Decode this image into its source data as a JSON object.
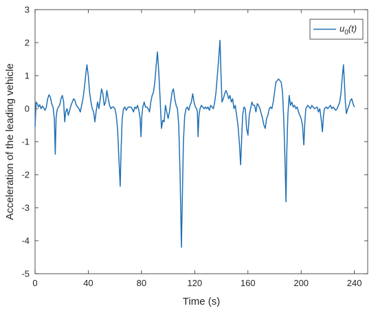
{
  "chart_data": {
    "type": "line",
    "xlabel": "Time (s)",
    "ylabel": "Acceleration of the leading vehicle",
    "xlim": [
      0,
      250
    ],
    "ylim": [
      -5,
      3
    ],
    "x_ticks": [
      0,
      40,
      80,
      120,
      160,
      200,
      240
    ],
    "y_ticks": [
      -5,
      -4,
      -3,
      -2,
      -1,
      0,
      1,
      2,
      3
    ],
    "grid": false,
    "legend_position": "top-right",
    "series": [
      {
        "name_parts": {
          "base": "u",
          "sub": "0",
          "tail": "(t)"
        },
        "color": "#1f6fb4",
        "points": [
          [
            0,
            -0.55
          ],
          [
            0.8,
            0.2
          ],
          [
            1.6,
            0.15
          ],
          [
            2.5,
            0.05
          ],
          [
            3.5,
            0.12
          ],
          [
            4.5,
            0.0
          ],
          [
            5.5,
            0.08
          ],
          [
            6.5,
            0.02
          ],
          [
            7.5,
            -0.05
          ],
          [
            8.5,
            0.05
          ],
          [
            9.5,
            0.3
          ],
          [
            10.5,
            0.42
          ],
          [
            11.5,
            0.35
          ],
          [
            12.5,
            0.15
          ],
          [
            13.5,
            0.05
          ],
          [
            14.5,
            -0.3
          ],
          [
            15.2,
            -1.38
          ],
          [
            15.8,
            -0.3
          ],
          [
            16.5,
            -0.05
          ],
          [
            17.5,
            0.05
          ],
          [
            18.5,
            0.1
          ],
          [
            19.5,
            0.3
          ],
          [
            20.5,
            0.4
          ],
          [
            21.5,
            0.2
          ],
          [
            22.3,
            -0.4
          ],
          [
            23,
            -0.1
          ],
          [
            24,
            0.0
          ],
          [
            25,
            -0.2
          ],
          [
            26,
            -0.05
          ],
          [
            27,
            0.1
          ],
          [
            28,
            0.2
          ],
          [
            29,
            0.3
          ],
          [
            30,
            0.25
          ],
          [
            31,
            0.1
          ],
          [
            32,
            0.05
          ],
          [
            33,
            0.0
          ],
          [
            34,
            -0.1
          ],
          [
            35,
            0.1
          ],
          [
            36,
            0.3
          ],
          [
            37,
            0.6
          ],
          [
            38,
            1.0
          ],
          [
            39,
            1.33
          ],
          [
            40,
            1.0
          ],
          [
            41,
            0.5
          ],
          [
            42,
            0.2
          ],
          [
            43,
            0.0
          ],
          [
            44,
            -0.1
          ],
          [
            45,
            -0.4
          ],
          [
            46,
            -0.05
          ],
          [
            47,
            0.2
          ],
          [
            48,
            0.0
          ],
          [
            49,
            0.3
          ],
          [
            50,
            0.6
          ],
          [
            51,
            0.45
          ],
          [
            52,
            0.1
          ],
          [
            53,
            0.2
          ],
          [
            54,
            0.55
          ],
          [
            55,
            0.3
          ],
          [
            56,
            0.1
          ],
          [
            57,
            0.0
          ],
          [
            58,
            0.05
          ],
          [
            59,
            0.05
          ],
          [
            60,
            0.0
          ],
          [
            61,
            -0.2
          ],
          [
            62,
            -0.6
          ],
          [
            63,
            -1.5
          ],
          [
            64,
            -2.35
          ],
          [
            64.7,
            -1.2
          ],
          [
            65.5,
            -0.3
          ],
          [
            66.5,
            0.0
          ],
          [
            67.5,
            0.05
          ],
          [
            68.5,
            -0.05
          ],
          [
            70,
            0.05
          ],
          [
            72,
            0.05
          ],
          [
            73,
            0.0
          ],
          [
            74,
            -0.1
          ],
          [
            75,
            0.05
          ],
          [
            76,
            0.0
          ],
          [
            77,
            0.1
          ],
          [
            78,
            -0.05
          ],
          [
            79,
            -0.3
          ],
          [
            79.6,
            -0.85
          ],
          [
            80.3,
            -0.2
          ],
          [
            81,
            0.05
          ],
          [
            82,
            0.2
          ],
          [
            83,
            0.05
          ],
          [
            84,
            0.05
          ],
          [
            85,
            0.0
          ],
          [
            86,
            -0.1
          ],
          [
            87,
            0.2
          ],
          [
            88,
            0.4
          ],
          [
            89,
            0.5
          ],
          [
            90,
            0.8
          ],
          [
            91,
            1.3
          ],
          [
            92,
            1.72
          ],
          [
            93,
            1.1
          ],
          [
            94,
            0.3
          ],
          [
            95,
            -0.6
          ],
          [
            96,
            -0.35
          ],
          [
            97,
            -0.4
          ],
          [
            98,
            0.1
          ],
          [
            99,
            -0.1
          ],
          [
            100,
            -0.3
          ],
          [
            101,
            -0.1
          ],
          [
            102,
            0.2
          ],
          [
            103,
            0.5
          ],
          [
            104,
            0.6
          ],
          [
            105,
            0.3
          ],
          [
            106,
            0.1
          ],
          [
            107,
            0.0
          ],
          [
            108,
            -0.5
          ],
          [
            109,
            -2.0
          ],
          [
            110,
            -4.2
          ],
          [
            110.8,
            -2.5
          ],
          [
            111.5,
            -1.0
          ],
          [
            112.5,
            -0.2
          ],
          [
            113.5,
            0.0
          ],
          [
            114.5,
            0.05
          ],
          [
            115.5,
            -0.05
          ],
          [
            116.5,
            0.1
          ],
          [
            117.5,
            0.2
          ],
          [
            118.5,
            0.45
          ],
          [
            119.5,
            0.2
          ],
          [
            120.5,
            0.05
          ],
          [
            121.5,
            0.0
          ],
          [
            122,
            -0.1
          ],
          [
            122.5,
            -0.85
          ],
          [
            123.2,
            -0.2
          ],
          [
            124,
            0.0
          ],
          [
            125,
            0.1
          ],
          [
            126,
            0.05
          ],
          [
            127,
            0.0
          ],
          [
            128,
            0.05
          ],
          [
            129,
            0.0
          ],
          [
            130,
            0.05
          ],
          [
            131,
            -0.05
          ],
          [
            132,
            0.1
          ],
          [
            133,
            0.05
          ],
          [
            134,
            0.0
          ],
          [
            135,
            0.2
          ],
          [
            136,
            0.5
          ],
          [
            137,
            1.0
          ],
          [
            138,
            1.5
          ],
          [
            139,
            2.07
          ],
          [
            139.8,
            1.0
          ],
          [
            140.5,
            0.2
          ],
          [
            141.5,
            0.3
          ],
          [
            142.5,
            0.45
          ],
          [
            143.5,
            0.55
          ],
          [
            144.5,
            0.45
          ],
          [
            145.5,
            0.3
          ],
          [
            146.5,
            0.4
          ],
          [
            147.5,
            0.2
          ],
          [
            148.5,
            0.3
          ],
          [
            149.5,
            0.0
          ],
          [
            150.5,
            0.1
          ],
          [
            151.5,
            -0.2
          ],
          [
            152.5,
            -0.5
          ],
          [
            153.5,
            -1.0
          ],
          [
            154.5,
            -1.7
          ],
          [
            155.2,
            -1.0
          ],
          [
            156,
            -0.2
          ],
          [
            157,
            0.05
          ],
          [
            158,
            0.0
          ],
          [
            159,
            -0.6
          ],
          [
            160,
            -0.8
          ],
          [
            161,
            -0.2
          ],
          [
            162,
            0.0
          ],
          [
            163,
            0.2
          ],
          [
            164,
            0.1
          ],
          [
            165,
            0.1
          ],
          [
            166,
            -0.1
          ],
          [
            167,
            0.15
          ],
          [
            168,
            0.1
          ],
          [
            169,
            0.0
          ],
          [
            170,
            -0.15
          ],
          [
            171,
            -0.3
          ],
          [
            172,
            -0.5
          ],
          [
            173,
            -0.6
          ],
          [
            174,
            -0.3
          ],
          [
            175,
            -0.2
          ],
          [
            176,
            0.0
          ],
          [
            177,
            0.05
          ],
          [
            178,
            0.0
          ],
          [
            179,
            0.2
          ],
          [
            180,
            0.5
          ],
          [
            181,
            0.8
          ],
          [
            182,
            0.85
          ],
          [
            183,
            0.9
          ],
          [
            184,
            0.85
          ],
          [
            185,
            0.8
          ],
          [
            186,
            0.5
          ],
          [
            187,
            -0.4
          ],
          [
            188,
            -1.8
          ],
          [
            188.6,
            -2.82
          ],
          [
            189.2,
            -1.3
          ],
          [
            190,
            -0.2
          ],
          [
            191,
            0.4
          ],
          [
            192,
            0.1
          ],
          [
            193,
            0.2
          ],
          [
            194,
            0.05
          ],
          [
            195,
            0.1
          ],
          [
            196,
            0.0
          ],
          [
            197,
            0.05
          ],
          [
            198,
            -0.1
          ],
          [
            199,
            -0.2
          ],
          [
            200,
            -0.3
          ],
          [
            201,
            -0.5
          ],
          [
            202,
            -1.1
          ],
          [
            202.8,
            -0.4
          ],
          [
            203.5,
            0.0
          ],
          [
            205,
            0.1
          ],
          [
            206,
            0.05
          ],
          [
            207,
            0.0
          ],
          [
            208,
            0.1
          ],
          [
            209,
            0.05
          ],
          [
            210,
            0.0
          ],
          [
            212,
            0.05
          ],
          [
            213,
            -0.1
          ],
          [
            214,
            0.0
          ],
          [
            215,
            -0.3
          ],
          [
            216,
            -0.7
          ],
          [
            216.8,
            -0.2
          ],
          [
            217.5,
            0.0
          ],
          [
            219,
            0.05
          ],
          [
            220,
            0.0
          ],
          [
            221,
            0.05
          ],
          [
            222,
            0.1
          ],
          [
            223,
            0.0
          ],
          [
            224,
            0.05
          ],
          [
            225,
            0.0
          ],
          [
            226,
            -0.05
          ],
          [
            227,
            0.0
          ],
          [
            228,
            0.1
          ],
          [
            229,
            0.2
          ],
          [
            230,
            0.5
          ],
          [
            231,
            1.0
          ],
          [
            231.8,
            1.33
          ],
          [
            232.5,
            0.8
          ],
          [
            233.2,
            0.2
          ],
          [
            234,
            -0.15
          ],
          [
            235,
            0.0
          ],
          [
            236,
            0.1
          ],
          [
            237,
            0.25
          ],
          [
            238,
            0.3
          ],
          [
            239,
            0.15
          ],
          [
            240,
            0.05
          ]
        ]
      }
    ]
  }
}
